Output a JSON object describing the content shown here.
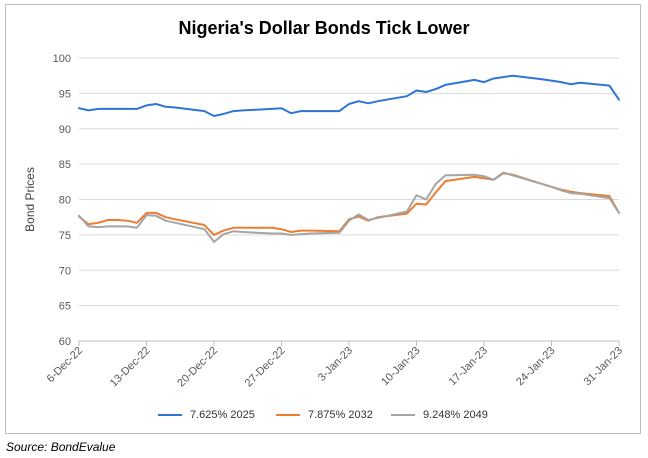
{
  "chart_data": {
    "type": "line",
    "title": "Nigeria's Dollar Bonds Tick Lower",
    "xlabel": "",
    "ylabel": "Bond Prices",
    "ylim": [
      60,
      100
    ],
    "yticks": [
      60,
      65,
      70,
      75,
      80,
      85,
      90,
      95,
      100
    ],
    "xticks": [
      "6-Dec-22",
      "13-Dec-22",
      "20-Dec-22",
      "27-Dec-22",
      "3-Jan-23",
      "10-Jan-23",
      "17-Jan-23",
      "24-Jan-23",
      "31-Jan-23"
    ],
    "x_day_range": [
      0,
      56
    ],
    "grid": "horizontal",
    "legend_position": "bottom",
    "series": [
      {
        "name": "7.625% 2025",
        "color": "#2e75d6",
        "days": [
          0,
          1,
          2,
          3,
          4,
          5,
          6,
          7,
          8,
          9,
          10,
          13,
          14,
          15,
          16,
          17,
          20,
          21,
          22,
          23,
          24,
          27,
          28,
          29,
          30,
          31,
          34,
          35,
          36,
          37,
          38,
          41,
          42,
          43,
          44,
          45,
          48,
          49,
          50,
          51,
          52,
          55,
          56
        ],
        "values": [
          92.9,
          92.6,
          92.8,
          92.8,
          92.8,
          92.8,
          92.8,
          93.3,
          93.5,
          93.1,
          93.0,
          92.5,
          91.8,
          92.1,
          92.5,
          92.6,
          92.8,
          92.9,
          92.2,
          92.5,
          92.5,
          92.5,
          93.5,
          93.9,
          93.6,
          93.9,
          94.6,
          95.4,
          95.2,
          95.6,
          96.2,
          96.9,
          96.6,
          97.1,
          97.3,
          97.5,
          97.0,
          96.8,
          96.6,
          96.3,
          96.5,
          96.1,
          94.1
        ]
      },
      {
        "name": "7.875% 2032",
        "color": "#ed7d31",
        "days": [
          0,
          1,
          2,
          3,
          4,
          5,
          6,
          7,
          8,
          9,
          10,
          13,
          14,
          15,
          16,
          17,
          20,
          21,
          22,
          23,
          24,
          27,
          28,
          29,
          30,
          31,
          34,
          35,
          36,
          37,
          38,
          41,
          42,
          43,
          44,
          45,
          48,
          49,
          50,
          51,
          52,
          55,
          56
        ],
        "values": [
          77.6,
          76.5,
          76.7,
          77.1,
          77.1,
          77.0,
          76.7,
          78.1,
          78.1,
          77.5,
          77.2,
          76.4,
          75.0,
          75.6,
          76.0,
          76.0,
          76.0,
          75.8,
          75.4,
          75.6,
          75.6,
          75.5,
          77.2,
          77.6,
          77.0,
          77.5,
          78.0,
          79.4,
          79.3,
          81.0,
          82.6,
          83.2,
          83.0,
          82.8,
          83.7,
          83.5,
          82.2,
          81.8,
          81.4,
          81.1,
          80.9,
          80.5,
          78.1
        ]
      },
      {
        "name": "9.248% 2049",
        "color": "#a5a5a5",
        "days": [
          0,
          1,
          2,
          3,
          4,
          5,
          6,
          7,
          8,
          9,
          10,
          13,
          14,
          15,
          16,
          17,
          20,
          21,
          22,
          23,
          24,
          27,
          28,
          29,
          30,
          31,
          34,
          35,
          36,
          37,
          38,
          41,
          42,
          43,
          44,
          45,
          48,
          49,
          50,
          51,
          52,
          55,
          56
        ],
        "values": [
          77.7,
          76.2,
          76.1,
          76.2,
          76.2,
          76.2,
          76.0,
          77.8,
          77.7,
          77.0,
          76.7,
          75.8,
          74.0,
          75.1,
          75.5,
          75.4,
          75.2,
          75.2,
          75.0,
          75.1,
          75.2,
          75.3,
          77.0,
          77.9,
          77.1,
          77.4,
          78.3,
          80.6,
          80.0,
          82.2,
          83.4,
          83.5,
          83.3,
          82.8,
          83.8,
          83.4,
          82.2,
          81.8,
          81.3,
          80.9,
          80.8,
          80.2,
          78.1
        ]
      }
    ]
  },
  "source": "Source: BondEvalue"
}
